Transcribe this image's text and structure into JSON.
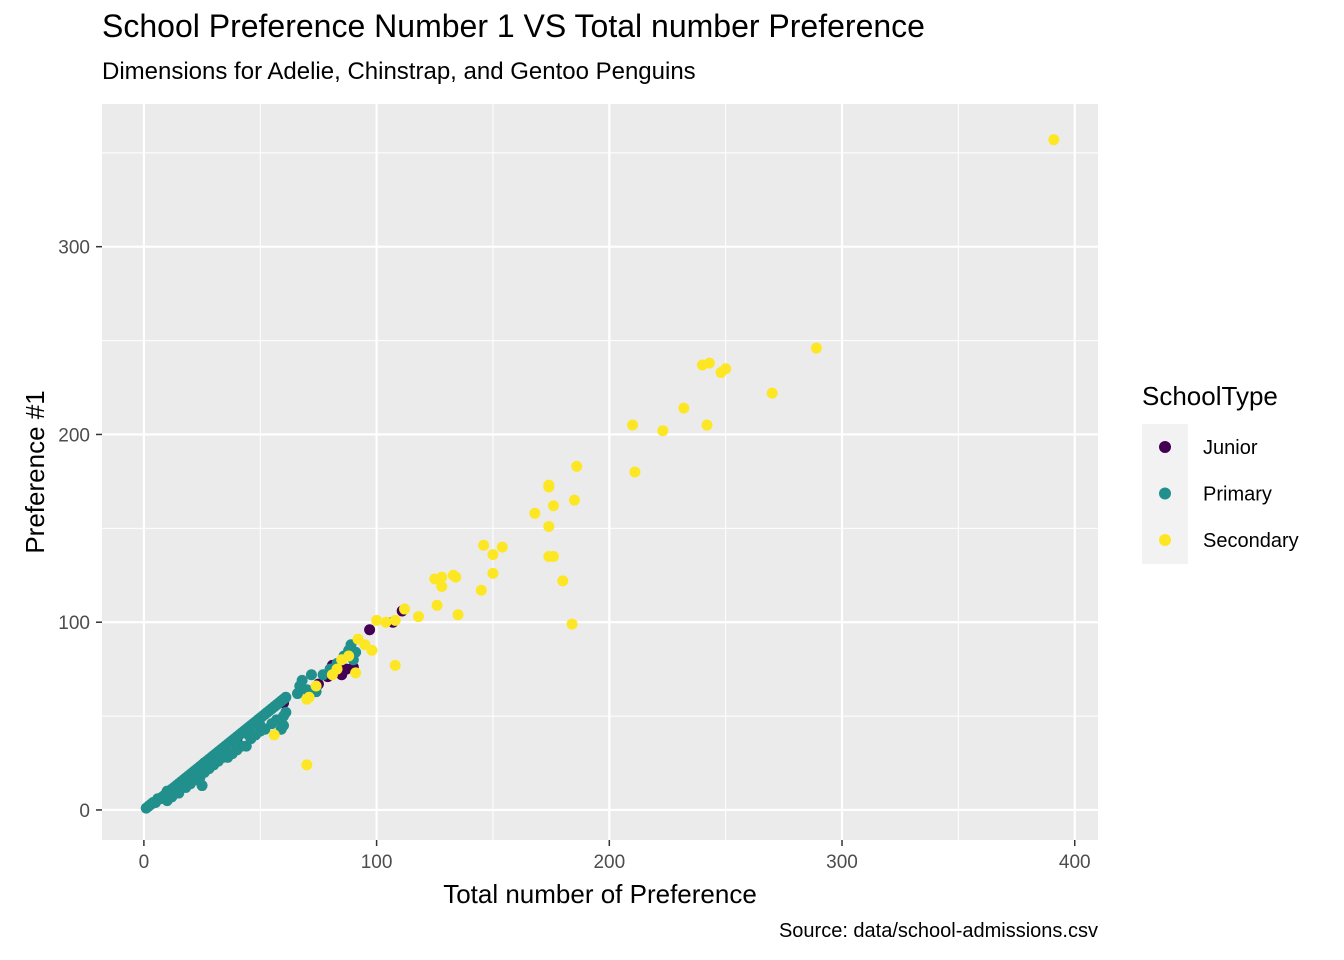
{
  "chart_data": {
    "type": "scatter",
    "title": "School Preference Number 1 VS Total number Preference",
    "subtitle": "Dimensions for Adelie, Chinstrap, and Gentoo Penguins",
    "caption": "Source: data/school-admissions.csv",
    "xlabel": "Total number of Preference",
    "ylabel": "Preference #1",
    "xlim": [
      -18,
      410
    ],
    "ylim": [
      -16,
      376
    ],
    "xticks": [
      0,
      100,
      200,
      300,
      400
    ],
    "yticks": [
      0,
      100,
      200,
      300
    ],
    "grid": true,
    "legend": {
      "title": "SchoolType",
      "position": "right"
    },
    "series": [
      {
        "name": "Junior",
        "color": "#440154",
        "points": [
          [
            26,
            25
          ],
          [
            40,
            38
          ],
          [
            60,
            57
          ],
          [
            75,
            67
          ],
          [
            79,
            71
          ],
          [
            81,
            77
          ],
          [
            85,
            72
          ],
          [
            87,
            75
          ],
          [
            90,
            76
          ],
          [
            97,
            96
          ],
          [
            107,
            100
          ],
          [
            111,
            106
          ]
        ]
      },
      {
        "name": "Primary",
        "color": "#21908C",
        "points": [
          [
            1,
            1
          ],
          [
            2,
            2
          ],
          [
            3,
            3
          ],
          [
            4,
            4
          ],
          [
            5,
            4
          ],
          [
            6,
            6
          ],
          [
            7,
            6
          ],
          [
            8,
            7
          ],
          [
            9,
            8
          ],
          [
            10,
            10
          ],
          [
            11,
            10
          ],
          [
            12,
            11
          ],
          [
            13,
            12
          ],
          [
            14,
            13
          ],
          [
            15,
            14
          ],
          [
            16,
            15
          ],
          [
            17,
            16
          ],
          [
            18,
            17
          ],
          [
            19,
            18
          ],
          [
            20,
            19
          ],
          [
            21,
            20
          ],
          [
            22,
            21
          ],
          [
            23,
            22
          ],
          [
            24,
            23
          ],
          [
            25,
            24
          ],
          [
            26,
            25
          ],
          [
            27,
            26
          ],
          [
            28,
            27
          ],
          [
            29,
            28
          ],
          [
            30,
            29
          ],
          [
            31,
            30
          ],
          [
            32,
            31
          ],
          [
            33,
            32
          ],
          [
            34,
            33
          ],
          [
            35,
            34
          ],
          [
            36,
            35
          ],
          [
            37,
            36
          ],
          [
            38,
            37
          ],
          [
            39,
            38
          ],
          [
            40,
            39
          ],
          [
            41,
            40
          ],
          [
            42,
            41
          ],
          [
            43,
            42
          ],
          [
            44,
            43
          ],
          [
            45,
            44
          ],
          [
            46,
            45
          ],
          [
            47,
            46
          ],
          [
            48,
            47
          ],
          [
            49,
            48
          ],
          [
            50,
            49
          ],
          [
            51,
            50
          ],
          [
            52,
            51
          ],
          [
            53,
            52
          ],
          [
            54,
            53
          ],
          [
            55,
            54
          ],
          [
            56,
            55
          ],
          [
            57,
            56
          ],
          [
            58,
            57
          ],
          [
            59,
            58
          ],
          [
            60,
            59
          ],
          [
            61,
            60
          ],
          [
            10,
            5
          ],
          [
            12,
            7
          ],
          [
            15,
            9
          ],
          [
            18,
            12
          ],
          [
            20,
            14
          ],
          [
            22,
            16
          ],
          [
            24,
            17
          ],
          [
            25,
            13
          ],
          [
            26,
            20
          ],
          [
            28,
            22
          ],
          [
            30,
            24
          ],
          [
            32,
            26
          ],
          [
            34,
            28
          ],
          [
            36,
            28
          ],
          [
            38,
            30
          ],
          [
            40,
            32
          ],
          [
            42,
            34
          ],
          [
            44,
            34
          ],
          [
            46,
            38
          ],
          [
            48,
            40
          ],
          [
            50,
            42
          ],
          [
            52,
            43
          ],
          [
            55,
            46
          ],
          [
            57,
            48
          ],
          [
            60,
            50
          ],
          [
            61,
            52
          ],
          [
            60,
            45
          ],
          [
            59,
            43
          ],
          [
            30,
            26
          ],
          [
            35,
            30
          ],
          [
            45,
            40
          ],
          [
            50,
            45
          ],
          [
            66,
            62
          ],
          [
            67,
            66
          ],
          [
            68,
            69
          ],
          [
            70,
            64
          ],
          [
            72,
            72
          ],
          [
            74,
            63
          ],
          [
            77,
            72
          ],
          [
            80,
            75
          ],
          [
            83,
            78
          ],
          [
            86,
            82
          ],
          [
            88,
            85
          ],
          [
            89,
            88
          ],
          [
            90,
            80
          ],
          [
            91,
            84
          ]
        ]
      },
      {
        "name": "Secondary",
        "color": "#FDE725",
        "points": [
          [
            391,
            357
          ],
          [
            289,
            246
          ],
          [
            270,
            222
          ],
          [
            250,
            235
          ],
          [
            248,
            233
          ],
          [
            243,
            238
          ],
          [
            240,
            237
          ],
          [
            242,
            205
          ],
          [
            232,
            214
          ],
          [
            223,
            202
          ],
          [
            211,
            180
          ],
          [
            210,
            205
          ],
          [
            186,
            183
          ],
          [
            185,
            165
          ],
          [
            184,
            99
          ],
          [
            180,
            122
          ],
          [
            176,
            162
          ],
          [
            176,
            135
          ],
          [
            174,
            172
          ],
          [
            174,
            173
          ],
          [
            174,
            151
          ],
          [
            174,
            135
          ],
          [
            168,
            158
          ],
          [
            154,
            140
          ],
          [
            150,
            126
          ],
          [
            150,
            136
          ],
          [
            146,
            141
          ],
          [
            145,
            117
          ],
          [
            135,
            104
          ],
          [
            134,
            124
          ],
          [
            133,
            125
          ],
          [
            128,
            119
          ],
          [
            128,
            124
          ],
          [
            125,
            123
          ],
          [
            126,
            109
          ],
          [
            118,
            103
          ],
          [
            112,
            107
          ],
          [
            108,
            101
          ],
          [
            108,
            77
          ],
          [
            104,
            100
          ],
          [
            100,
            101
          ],
          [
            98,
            85
          ],
          [
            95,
            88
          ],
          [
            92,
            91
          ],
          [
            91,
            73
          ],
          [
            88,
            82
          ],
          [
            85,
            80
          ],
          [
            83,
            75
          ],
          [
            81,
            72
          ],
          [
            74,
            66
          ],
          [
            71,
            60
          ],
          [
            70,
            59
          ],
          [
            70,
            24
          ],
          [
            56,
            40
          ]
        ]
      }
    ]
  }
}
